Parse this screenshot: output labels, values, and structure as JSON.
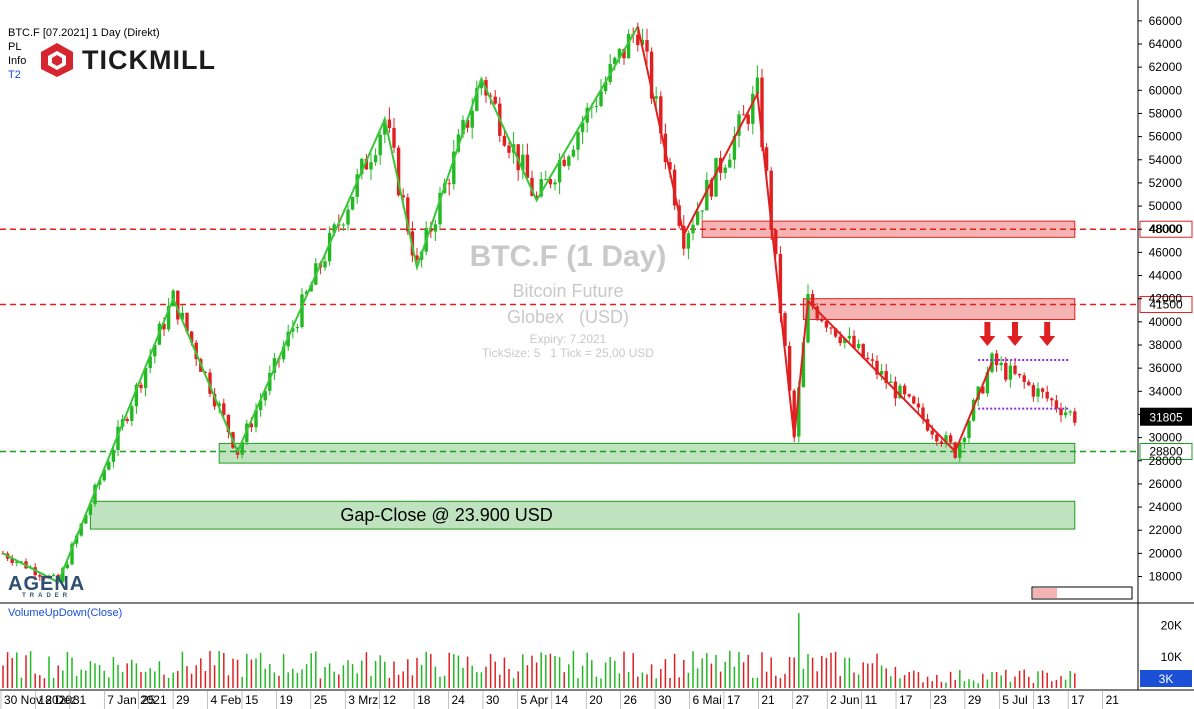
{
  "header": {
    "symbol_line": "BTC.F [07.2021] 1 Day (Direkt)",
    "line2": "PL",
    "line3": "Info",
    "line4": "T2",
    "brand": "TICKMILL"
  },
  "watermark": {
    "title": "BTC.F (1 Day)",
    "name": "Bitcoin Future",
    "exchange": "Globex   (USD)",
    "expiry": "Expiry: 7.2021",
    "ticksize": "TickSize: 5   1 Tick = 25,00 USD"
  },
  "footer_logo": {
    "main": "AGENA",
    "sub": "TRADER"
  },
  "colors": {
    "up": "#22b822",
    "down": "#e02020",
    "axis": "#000000"
  },
  "chart_data": {
    "type": "candlestick",
    "price_axis": {
      "ylim": [
        15800,
        67800
      ],
      "ticks": [
        18000,
        20000,
        22000,
        24000,
        26000,
        28000,
        30000,
        32000,
        34000,
        36000,
        38000,
        40000,
        42000,
        44000,
        46000,
        48000,
        50000,
        52000,
        54000,
        56000,
        58000,
        60000,
        62000,
        64000,
        66000
      ]
    },
    "x_axis_labels": [
      "30 Nov 2020",
      "18 Dez",
      "31",
      "7 Jan 2021",
      "25",
      "29",
      "4 Feb",
      "15",
      "19",
      "25",
      "3 Mrz",
      "12",
      "18",
      "24",
      "30",
      "5 Apr",
      "14",
      "20",
      "26",
      "30",
      "6 Mai",
      "17",
      "21",
      "27",
      "2 Jun",
      "11",
      "17",
      "23",
      "29",
      "5 Jul",
      "13",
      "17",
      "21"
    ],
    "horizontal_levels": [
      {
        "value": 48000,
        "label": "48000",
        "color": "#e02020"
      },
      {
        "value": 41500,
        "label": "41500",
        "color": "#e02020"
      },
      {
        "value": 28800,
        "label": "28800",
        "color": "#1e9e1e"
      }
    ],
    "last_price": {
      "value": 31805,
      "label": "31805"
    },
    "zones": [
      {
        "from_bar": 152,
        "to_bar": 233,
        "low": 47300,
        "high": 48700,
        "color": "red"
      },
      {
        "from_bar": 174,
        "to_bar": 233,
        "low": 40200,
        "high": 42000,
        "color": "red"
      },
      {
        "from_bar": 47,
        "to_bar": 233,
        "low": 27800,
        "high": 29500,
        "color": "green"
      },
      {
        "from_bar": 19,
        "to_bar": 233,
        "low": 22100,
        "high": 24500,
        "color": "green",
        "label": "Gap-Close @ 23.900 USD"
      }
    ],
    "zigzag_green": [
      [
        0,
        20000
      ],
      [
        12,
        17500
      ],
      [
        37,
        42000
      ],
      [
        51,
        28800
      ],
      [
        83,
        57500
      ],
      [
        90,
        44700
      ],
      [
        104,
        61000
      ],
      [
        116,
        50500
      ],
      [
        138,
        65500
      ]
    ],
    "zigzag_red": [
      [
        138,
        65500
      ],
      [
        148,
        47500
      ],
      [
        164,
        59700
      ],
      [
        172,
        30000
      ],
      [
        175,
        41800
      ],
      [
        207,
        28800
      ],
      [
        215,
        36500
      ]
    ],
    "resistance_band": {
      "from_bar": 212,
      "to_bar": 232,
      "top": 36700,
      "bottom": 32500
    },
    "arrows_at_bars": [
      214,
      220,
      227
    ],
    "volume": {
      "title": "VolumeUpDown(Close)",
      "ticks": [
        {
          "value": 20000,
          "label": "20K"
        },
        {
          "value": 10000,
          "label": "10K"
        }
      ],
      "current_label": "3K",
      "ymax": 25000
    }
  }
}
